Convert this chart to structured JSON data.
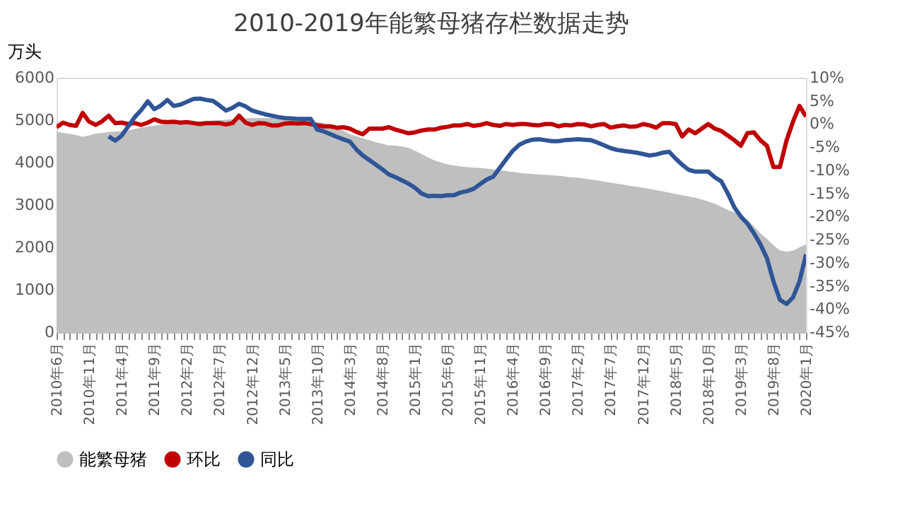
{
  "chart_data": {
    "type": "area",
    "title": "2010-2019年能繁母猪存栏数据走势",
    "ylabel": "万头",
    "categories": [
      "2010年6月",
      null,
      null,
      null,
      null,
      "2010年11月",
      null,
      null,
      null,
      null,
      "2011年4月",
      null,
      null,
      null,
      null,
      "2011年9月",
      null,
      null,
      null,
      null,
      "2012年2月",
      null,
      null,
      null,
      null,
      "2012年7月",
      null,
      null,
      null,
      null,
      "2012年12月",
      null,
      null,
      null,
      null,
      "2013年5月",
      null,
      null,
      null,
      null,
      "2013年10月",
      null,
      null,
      null,
      null,
      "2014年3月",
      null,
      null,
      null,
      null,
      "2014年8月",
      null,
      null,
      null,
      null,
      "2015年1月",
      null,
      null,
      null,
      null,
      "2015年6月",
      null,
      null,
      null,
      null,
      "2015年11月",
      null,
      null,
      null,
      null,
      "2016年4月",
      null,
      null,
      null,
      null,
      "2016年9月",
      null,
      null,
      null,
      null,
      "2017年2月",
      null,
      null,
      null,
      null,
      "2017年7月",
      null,
      null,
      null,
      null,
      "2017年12月",
      null,
      null,
      null,
      null,
      "2018年5月",
      null,
      null,
      null,
      null,
      "2018年10月",
      null,
      null,
      null,
      null,
      "2019年3月",
      null,
      null,
      null,
      null,
      "2019年8月",
      null,
      null,
      null,
      null,
      "2020年1月"
    ],
    "series": [
      {
        "name": "能繁母猪",
        "color": "#bfbfbf",
        "values": [
          4730,
          4700,
          4680,
          4650,
          4610,
          4640,
          4680,
          4700,
          4720,
          4730,
          4740,
          4760,
          4790,
          4820,
          4850,
          4870,
          4890,
          4910,
          4920,
          4940,
          4950,
          4960,
          4970,
          4980,
          4990,
          5000,
          5010,
          5020,
          5030,
          5040,
          5050,
          5050,
          5050,
          5050,
          5040,
          5040,
          5030,
          5020,
          5000,
          4980,
          4960,
          4930,
          4880,
          4820,
          4750,
          4670,
          4620,
          4570,
          4530,
          4480,
          4440,
          4400,
          4400,
          4380,
          4350,
          4280,
          4200,
          4120,
          4050,
          4000,
          3960,
          3930,
          3910,
          3890,
          3880,
          3870,
          3860,
          3840,
          3820,
          3800,
          3780,
          3760,
          3740,
          3730,
          3720,
          3710,
          3700,
          3690,
          3670,
          3650,
          3640,
          3620,
          3600,
          3580,
          3550,
          3530,
          3500,
          3480,
          3450,
          3430,
          3410,
          3380,
          3350,
          3320,
          3290,
          3260,
          3230,
          3200,
          3170,
          3130,
          3080,
          3030,
          2960,
          2880,
          2830,
          2760,
          2650,
          2500,
          2330,
          2200,
          2050,
          1930,
          1900,
          1920,
          2000,
          2070
        ]
      },
      {
        "name": "环比",
        "type": "line",
        "axis": "y2",
        "color": "#c00000",
        "values": [
          -0.7,
          0.3,
          -0.2,
          -0.4,
          2.4,
          0.5,
          -0.2,
          0.6,
          1.8,
          0.2,
          0.3,
          0,
          0.2,
          -0.2,
          0.3,
          1,
          0.5,
          0.4,
          0.5,
          0.3,
          0.4,
          0.2,
          0,
          0.2,
          0.2,
          0.2,
          -0.1,
          0.2,
          1.8,
          0.3,
          -0.2,
          0.2,
          0.1,
          -0.3,
          -0.3,
          0.1,
          0.2,
          0.1,
          0.2,
          0,
          -0.3,
          -0.5,
          -0.5,
          -0.8,
          -0.7,
          -1,
          -1.7,
          -2.2,
          -1,
          -1,
          -1,
          -0.7,
          -1.2,
          -1.6,
          -2,
          -1.8,
          -1.4,
          -1.2,
          -1.2,
          -0.8,
          -0.6,
          -0.3,
          -0.3,
          0,
          -0.4,
          -0.2,
          0.2,
          -0.2,
          -0.4,
          0,
          -0.2,
          0,
          0,
          -0.2,
          -0.3,
          0,
          0,
          -0.5,
          -0.2,
          -0.3,
          0,
          -0.1,
          -0.5,
          -0.2,
          0,
          -0.8,
          -0.5,
          -0.3,
          -0.6,
          -0.5,
          0,
          -0.3,
          -0.8,
          0.2,
          0.2,
          0,
          -2.7,
          -1.2,
          -2,
          -1,
          0,
          -1,
          -1.5,
          -2.5,
          -3.5,
          -4.7,
          -2,
          -1.8,
          -3.5,
          -4.7,
          -9.3,
          -9.3,
          -3.6,
          0.5,
          3.9,
          1.6
        ]
      },
      {
        "name": "同比",
        "type": "line",
        "axis": "y2",
        "color": "#2f5597",
        "values": [
          null,
          null,
          null,
          null,
          null,
          null,
          null,
          null,
          -2.7,
          -3.6,
          -2.5,
          -0.5,
          1.5,
          3,
          4.9,
          3.2,
          4,
          5.2,
          3.9,
          4.2,
          4.8,
          5.4,
          5.5,
          5.2,
          5,
          4,
          2.9,
          3.5,
          4.4,
          3.8,
          2.9,
          2.5,
          2.1,
          1.8,
          1.5,
          1.3,
          1.2,
          1.1,
          1.1,
          1.1,
          -1.2,
          -1.6,
          -2.2,
          -2.8,
          -3.3,
          -3.8,
          -5.5,
          -6.8,
          -7.8,
          -8.8,
          -9.8,
          -10.9,
          -11.5,
          -12.2,
          -12.9,
          -13.8,
          -15,
          -15.6,
          -15.5,
          -15.6,
          -15.4,
          -15.4,
          -14.8,
          -14.5,
          -14,
          -13,
          -12,
          -11.4,
          -9.5,
          -7.6,
          -5.8,
          -4.5,
          -3.8,
          -3.4,
          -3.3,
          -3.5,
          -3.7,
          -3.7,
          -3.5,
          -3.4,
          -3.3,
          -3.4,
          -3.5,
          -4,
          -4.6,
          -5.2,
          -5.6,
          -5.8,
          -6,
          -6.2,
          -6.5,
          -6.8,
          -6.6,
          -6.2,
          -6,
          -7.5,
          -8.8,
          -9.9,
          -10.3,
          -10.3,
          -10.3,
          -11.5,
          -12.4,
          -15,
          -18,
          -20,
          -21.5,
          -23.6,
          -26,
          -29,
          -34,
          -38,
          -38.9,
          -37.5,
          -34,
          -28.2
        ]
      }
    ],
    "ylim": [
      0,
      6000
    ],
    "yticks": [
      0,
      1000,
      2000,
      3000,
      4000,
      5000,
      6000
    ],
    "y2lim": [
      -45,
      10
    ],
    "y2ticks": [
      {
        "value": 10,
        "label": "10%"
      },
      {
        "value": 5,
        "label": "5%"
      },
      {
        "value": 0,
        "label": "0%"
      },
      {
        "value": -5,
        "label": "-5%"
      },
      {
        "value": -10,
        "label": "-10%"
      },
      {
        "value": -15,
        "label": "-15%"
      },
      {
        "value": -20,
        "label": "-20%"
      },
      {
        "value": -25,
        "label": "-25%"
      },
      {
        "value": -30,
        "label": "-30%"
      },
      {
        "value": -35,
        "label": "-35%"
      },
      {
        "value": -40,
        "label": "-40%"
      },
      {
        "value": -45,
        "label": "-45%"
      }
    ],
    "grid": false,
    "legend": "bottom",
    "line_style": "solid",
    "marker": "none"
  }
}
